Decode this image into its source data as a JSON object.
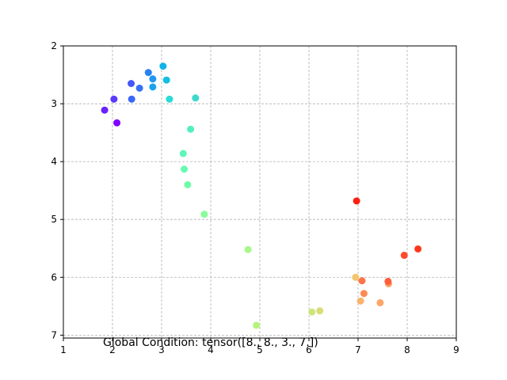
{
  "chart_data": {
    "type": "scatter",
    "title": "",
    "xlabel": "",
    "ylabel": "",
    "xlim": [
      1,
      9
    ],
    "ylim": [
      2,
      7.05
    ],
    "y_inverted": true,
    "grid": true,
    "x_ticks": [
      "1",
      "2",
      "3",
      "4",
      "5",
      "6",
      "7",
      "8",
      "9"
    ],
    "y_ticks": [
      "2",
      "3",
      "4",
      "5",
      "6",
      "7"
    ],
    "colormap": "rainbow",
    "annotation": "Global Condition: tensor([8., 8., 3., 7.])",
    "points": [
      {
        "x": 2.09,
        "y": 3.33,
        "color": "#7f00ff"
      },
      {
        "x": 1.84,
        "y": 3.11,
        "color": "#6a21fe"
      },
      {
        "x": 2.03,
        "y": 2.92,
        "color": "#5a3afd"
      },
      {
        "x": 2.38,
        "y": 2.65,
        "color": "#4656fa"
      },
      {
        "x": 2.39,
        "y": 2.92,
        "color": "#3a67f7"
      },
      {
        "x": 2.55,
        "y": 2.73,
        "color": "#3473f6"
      },
      {
        "x": 2.73,
        "y": 2.46,
        "color": "#2a82f1"
      },
      {
        "x": 2.82,
        "y": 2.57,
        "color": "#2196f3"
      },
      {
        "x": 2.82,
        "y": 2.71,
        "color": "#18a3ec"
      },
      {
        "x": 3.03,
        "y": 2.35,
        "color": "#10b4e8"
      },
      {
        "x": 3.1,
        "y": 2.59,
        "color": "#12c0e2"
      },
      {
        "x": 3.16,
        "y": 2.92,
        "color": "#2adbd6"
      },
      {
        "x": 3.69,
        "y": 2.9,
        "color": "#3ed8cc"
      },
      {
        "x": 3.59,
        "y": 3.44,
        "color": "#52f0c0"
      },
      {
        "x": 3.44,
        "y": 3.86,
        "color": "#5ef7b6"
      },
      {
        "x": 3.46,
        "y": 4.13,
        "color": "#66fab1"
      },
      {
        "x": 3.53,
        "y": 4.4,
        "color": "#70fba9"
      },
      {
        "x": 3.87,
        "y": 4.91,
        "color": "#8afc9a"
      },
      {
        "x": 4.76,
        "y": 5.52,
        "color": "#a8f88a"
      },
      {
        "x": 4.93,
        "y": 6.83,
        "color": "#b4f47c"
      },
      {
        "x": 6.06,
        "y": 6.6,
        "color": "#cfe57a"
      },
      {
        "x": 6.22,
        "y": 6.58,
        "color": "#d8dd78"
      },
      {
        "x": 6.95,
        "y": 6.0,
        "color": "#f1c66c"
      },
      {
        "x": 7.05,
        "y": 6.41,
        "color": "#f8b46c"
      },
      {
        "x": 7.45,
        "y": 6.44,
        "color": "#fba66a"
      },
      {
        "x": 7.62,
        "y": 6.11,
        "color": "#fc9a62"
      },
      {
        "x": 7.12,
        "y": 6.28,
        "color": "#fd8a54"
      },
      {
        "x": 7.08,
        "y": 6.06,
        "color": "#ff744a"
      },
      {
        "x": 7.61,
        "y": 6.07,
        "color": "#ff5e3c"
      },
      {
        "x": 7.94,
        "y": 5.62,
        "color": "#ff4a2c"
      },
      {
        "x": 8.22,
        "y": 5.51,
        "color": "#ff381d"
      },
      {
        "x": 6.97,
        "y": 4.68,
        "color": "#ff1e10"
      }
    ]
  }
}
